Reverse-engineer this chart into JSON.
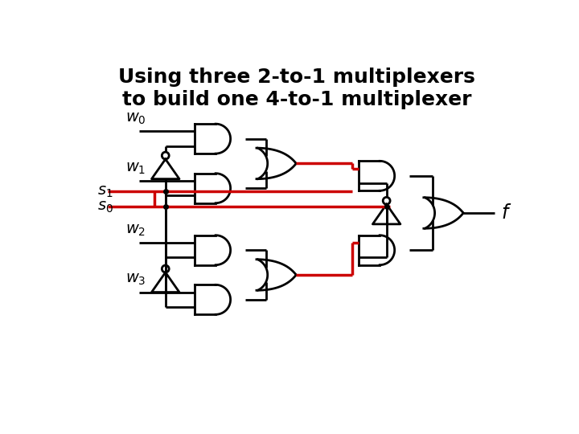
{
  "title_line1": "Using three 2-to-1 multiplexers",
  "title_line2": "to build one 4-to-1 multiplexer",
  "title_fontsize": 18,
  "bg_color": "#ffffff",
  "black": "#000000",
  "red": "#cc0000",
  "lw": 2.0,
  "rlw": 2.5
}
